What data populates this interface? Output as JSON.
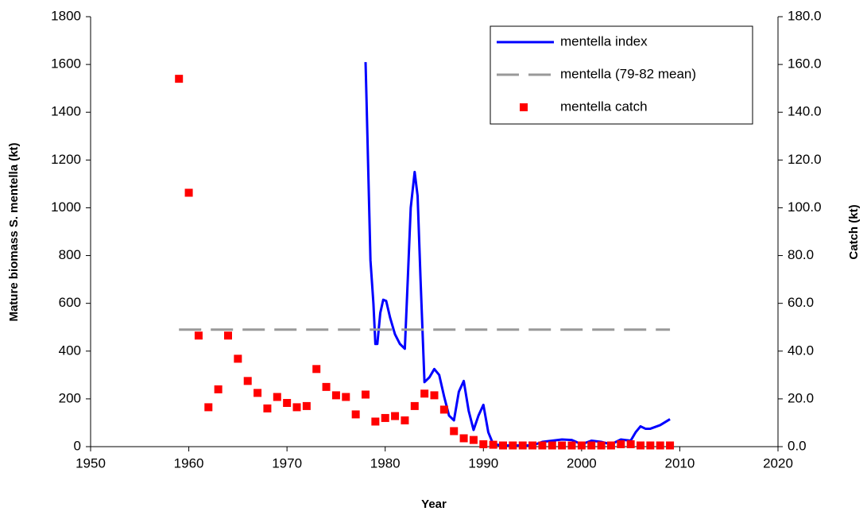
{
  "chart_data": {
    "type": "line",
    "x_label": "Year",
    "y_label": "Mature biomass S. mentella (kt)",
    "y2_label": "Catch (kt)",
    "xlim": [
      1950,
      2020
    ],
    "xticks": [
      1950,
      1960,
      1970,
      1980,
      1990,
      2000,
      2010,
      2020
    ],
    "ylim": [
      0,
      1800
    ],
    "yticks": [
      0,
      200,
      400,
      600,
      800,
      1000,
      1200,
      1400,
      1600,
      1800
    ],
    "y2lim": [
      0,
      180
    ],
    "y2ticks": [
      {
        "value": 0,
        "label": "0.0"
      },
      {
        "value": 20,
        "label": "20.0"
      },
      {
        "value": 40,
        "label": "40.0"
      },
      {
        "value": 60,
        "label": "60.0"
      },
      {
        "value": 80,
        "label": "80.0"
      },
      {
        "value": 100,
        "label": "100.0"
      },
      {
        "value": 120,
        "label": "120.0"
      },
      {
        "value": 140,
        "label": "140.0"
      },
      {
        "value": 160,
        "label": "160.0"
      },
      {
        "value": 180,
        "label": "180.0"
      }
    ],
    "grid": false,
    "legend": "top-right",
    "series": [
      {
        "name": "mentella index",
        "color": "#0000ff",
        "kind": "line",
        "x": [
          1978,
          1978.1,
          1978.5,
          1978.8,
          1979,
          1979.2,
          1979.5,
          1979.8,
          1980.1,
          1980.5,
          1981,
          1981.5,
          1982,
          1982.3,
          1982.6,
          1983,
          1983.3,
          1983.6,
          1984,
          1984.5,
          1985,
          1985.5,
          1986,
          1986.5,
          1987,
          1987.5,
          1988,
          1988.5,
          1989,
          1989.5,
          1990,
          1990.5,
          1991,
          1992,
          1995,
          1996,
          1998,
          1999,
          2000,
          2001,
          2002,
          2003,
          2004,
          2005,
          2005.5,
          2006,
          2006.5,
          2007,
          2008,
          2009
        ],
        "values": [
          1610,
          1450,
          780,
          600,
          430,
          430,
          560,
          615,
          610,
          540,
          470,
          430,
          410,
          700,
          1000,
          1150,
          1050,
          700,
          270,
          290,
          325,
          300,
          210,
          130,
          110,
          230,
          275,
          150,
          70,
          130,
          175,
          60,
          10,
          5,
          5,
          20,
          30,
          28,
          10,
          25,
          20,
          10,
          30,
          25,
          60,
          85,
          75,
          75,
          90,
          115
        ]
      },
      {
        "name": "mentella (79-82 mean)",
        "color": "#999999",
        "kind": "dashed",
        "x": [
          1959,
          2009
        ],
        "values": [
          490,
          490
        ]
      },
      {
        "name": "mentella catch",
        "color": "#ff0000",
        "kind": "scatter",
        "axis": "y2",
        "x": [
          1959,
          1960,
          1961,
          1962,
          1963,
          1964,
          1965,
          1966,
          1967,
          1968,
          1969,
          1970,
          1971,
          1972,
          1973,
          1974,
          1975,
          1976,
          1977,
          1978,
          1979,
          1980,
          1981,
          1982,
          1983,
          1984,
          1985,
          1986,
          1987,
          1988,
          1989,
          1990,
          1991,
          1992,
          1993,
          1994,
          1995,
          1996,
          1997,
          1998,
          1999,
          2000,
          2001,
          2002,
          2003,
          2004,
          2005,
          2006,
          2007,
          2008,
          2009
        ],
        "values": [
          154,
          106.3,
          46.5,
          16.5,
          24,
          46.5,
          36.8,
          27.5,
          22.5,
          16,
          20.8,
          18.3,
          16.5,
          17,
          32.5,
          25,
          21.5,
          20.8,
          13.5,
          21.8,
          10.5,
          12,
          12.8,
          11,
          17,
          22.2,
          21.5,
          15.5,
          6.5,
          3.5,
          2.8,
          1,
          0.8,
          0.5,
          0.5,
          0.5,
          0.5,
          0.5,
          0.5,
          0.5,
          0.5,
          0.5,
          0.5,
          0.5,
          0.5,
          1,
          1,
          0.5,
          0.5,
          0.5,
          0.5
        ]
      }
    ]
  }
}
